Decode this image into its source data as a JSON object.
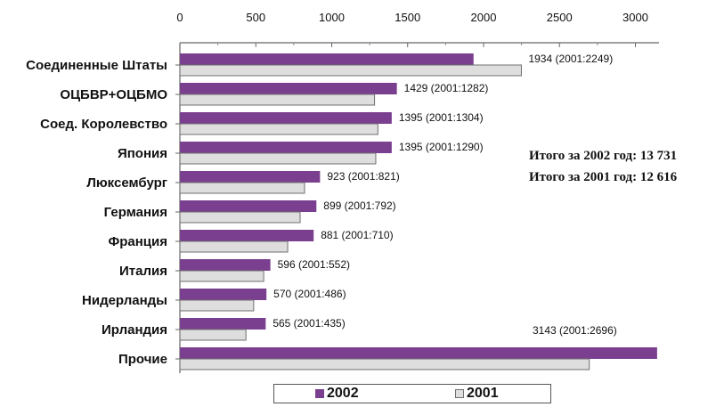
{
  "chart_data": {
    "type": "bar",
    "orientation": "horizontal",
    "categories": [
      "Соединенные Штаты",
      "ОЦБВР+ОЦБМО",
      "Соед. Королевство",
      "Япония",
      "Люксембург",
      "Германия",
      "Франция",
      "Италия",
      "Нидерланды",
      "Ирландия",
      "Прочие"
    ],
    "series": [
      {
        "name": "2002",
        "values": [
          1934,
          1429,
          1395,
          1395,
          923,
          899,
          881,
          596,
          570,
          565,
          3143
        ],
        "color": "#7a3f8f"
      },
      {
        "name": "2001",
        "values": [
          2249,
          1282,
          1304,
          1290,
          821,
          792,
          710,
          552,
          486,
          435,
          2696
        ],
        "color": "#dedede"
      }
    ],
    "data_labels": [
      "1934 (2001:2249)",
      "1429 (2001:1282)",
      "1395 (2001:1304)",
      "1395 (2001:1290)",
      "923 (2001:821)",
      "899 (2001:792)",
      "881 (2001:710)",
      "596 (2001:552)",
      "570 (2001:486)",
      "565 (2001:435)",
      "3143 (2001:2696)"
    ],
    "x_ticks": [
      0,
      500,
      1000,
      1500,
      2000,
      2500,
      3000
    ],
    "x_tick_labels": [
      "0",
      "500",
      "1000",
      "1500",
      "2000",
      "2500",
      "3000"
    ],
    "xlim": [
      0,
      3100
    ],
    "grid": false,
    "legend_position": "bottom",
    "annotations": [
      "Итого за 2002 год: 13 731",
      "Итого за 2001 год: 12 616"
    ]
  },
  "legend": {
    "label_2002": "2002",
    "label_2001": "2001"
  }
}
